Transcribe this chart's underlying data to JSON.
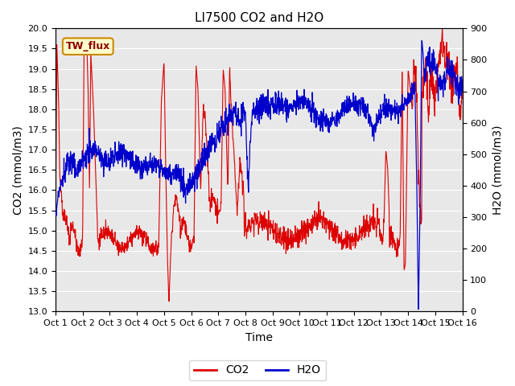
{
  "title": "LI7500 CO2 and H2O",
  "xlabel": "Time",
  "ylabel_left": "CO2 (mmol/m3)",
  "ylabel_right": "H2O (mmol/m3)",
  "ylim_left": [
    13.0,
    20.0
  ],
  "ylim_right": [
    0,
    900
  ],
  "x_tick_labels": [
    "Oct 1",
    "Oct 2",
    "Oct 3",
    "Oct 4",
    "Oct 5",
    "Oct 6",
    "Oct 7",
    "Oct 8",
    "Oct 9",
    "Oct 10",
    "Oct 11",
    "Oct 12",
    "Oct 13",
    "Oct 14",
    "Oct 15",
    "Oct 16"
  ],
  "co2_color": "#dd0000",
  "h2o_color": "#0000cc",
  "background_color": "#e8e8e8",
  "legend_label_co2": "CO2",
  "legend_label_h2o": "H2O",
  "annotation_text": "TW_flux",
  "annotation_box_color": "#ffffcc",
  "annotation_border_color": "#cc8800",
  "title_fontsize": 11,
  "axis_label_fontsize": 10,
  "tick_fontsize": 8,
  "legend_fontsize": 10
}
